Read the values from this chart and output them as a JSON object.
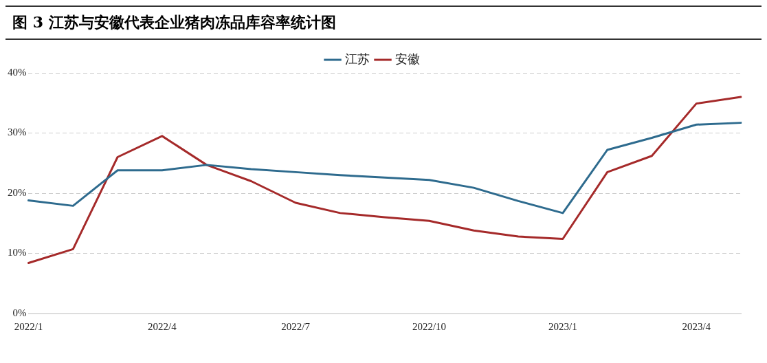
{
  "chart_data": {
    "type": "line",
    "title": "图 3 江苏与安徽代表企业猪肉冻品库容率统计图",
    "categories": [
      "2022/1",
      null,
      null,
      "2022/4",
      null,
      null,
      "2022/7",
      null,
      null,
      "2022/10",
      null,
      null,
      "2023/1",
      null,
      null,
      "2023/4",
      null
    ],
    "series": [
      {
        "name": "江苏",
        "color": "#2e6b8e",
        "values": [
          18.8,
          17.9,
          23.8,
          23.8,
          24.7,
          24.0,
          23.5,
          23.0,
          22.6,
          22.2,
          20.9,
          18.7,
          16.7,
          27.2,
          29.2,
          31.4,
          31.7
        ]
      },
      {
        "name": "安徽",
        "color": "#a52a2a",
        "values": [
          8.4,
          10.7,
          26.0,
          29.5,
          24.7,
          22.0,
          18.4,
          16.7,
          16.0,
          15.4,
          13.8,
          12.8,
          12.4,
          23.5,
          26.2,
          34.9,
          36.0
        ]
      }
    ],
    "ylim": [
      0,
      40
    ],
    "yticks": [
      {
        "value": 0,
        "label": "0%"
      },
      {
        "value": 10,
        "label": "10%"
      },
      {
        "value": 20,
        "label": "20%"
      },
      {
        "value": 30,
        "label": "30%"
      },
      {
        "value": 40,
        "label": "40%"
      }
    ],
    "grid": "y",
    "legend": "top",
    "marker": "none",
    "line_style": "solid"
  }
}
